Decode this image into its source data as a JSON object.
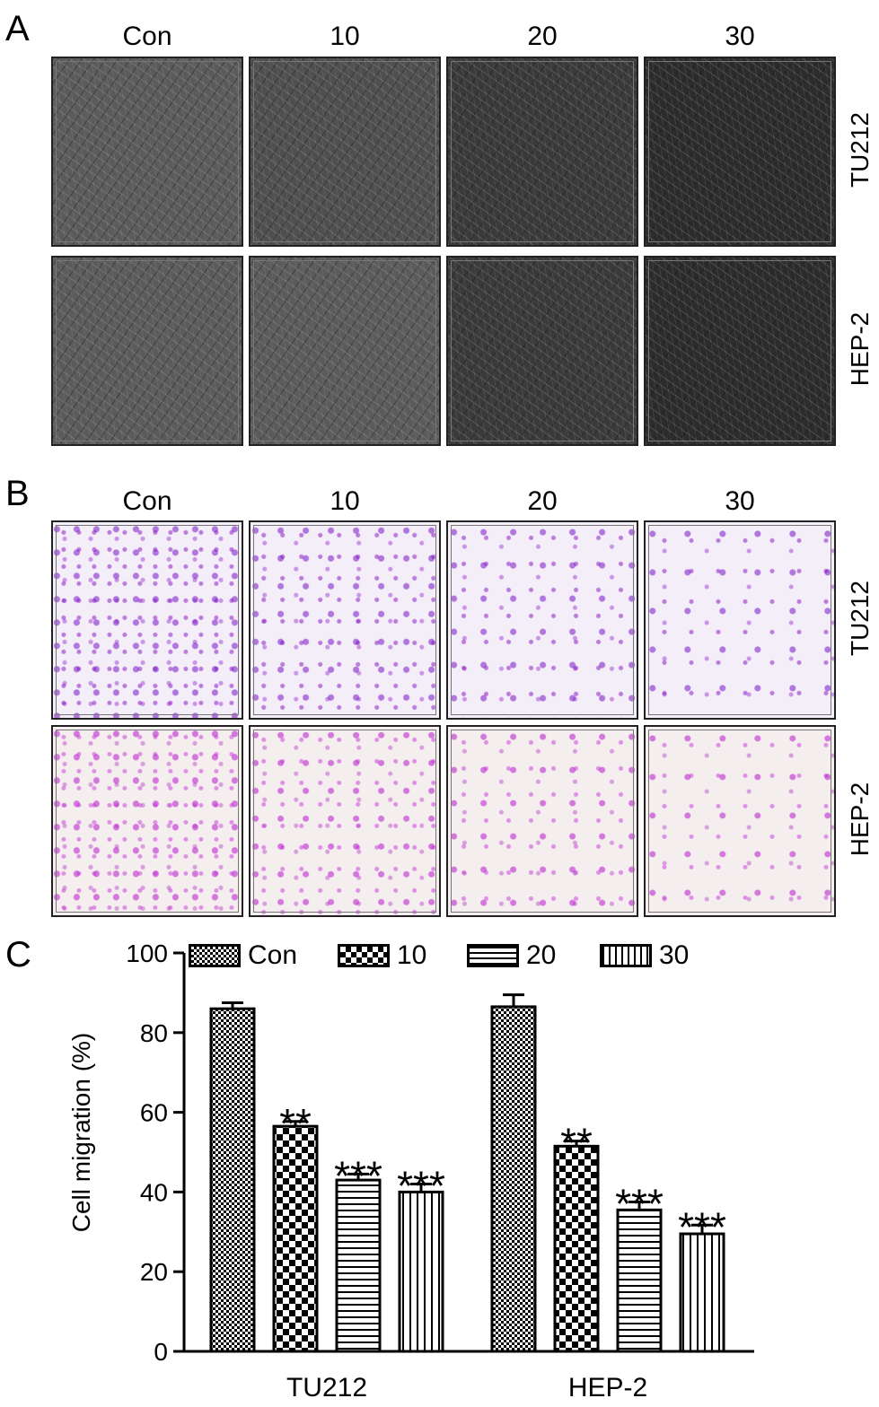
{
  "panels": {
    "a": {
      "letter": "A",
      "columns": [
        "Con",
        "10",
        "20",
        "30"
      ],
      "rows": [
        "TU212",
        "HEP-2"
      ]
    },
    "b": {
      "letter": "B",
      "columns": [
        "Con",
        "10",
        "20",
        "30"
      ],
      "rows": [
        "TU212",
        "HEP-2"
      ]
    },
    "c": {
      "letter": "C"
    }
  },
  "chart_data": {
    "type": "bar",
    "title": "",
    "xlabel": "",
    "ylabel": "Cell migration (%)",
    "ylim": [
      0,
      100
    ],
    "yticks": [
      0,
      20,
      40,
      60,
      80,
      100
    ],
    "grid": false,
    "legend_position": "top",
    "categories": [
      "TU212",
      "HEP-2"
    ],
    "series": [
      {
        "name": "Con",
        "pattern": "checker-fine",
        "values": [
          86,
          86.5
        ],
        "errors": [
          1.5,
          3
        ],
        "significance": [
          "",
          ""
        ]
      },
      {
        "name": "10",
        "pattern": "checker-coarse",
        "values": [
          56.5,
          51.5
        ],
        "errors": [
          1.2,
          1.3
        ],
        "significance": [
          "**",
          "**"
        ]
      },
      {
        "name": "20",
        "pattern": "horizontal-lines",
        "values": [
          43,
          35.5
        ],
        "errors": [
          1.5,
          2
        ],
        "significance": [
          "***",
          "***"
        ]
      },
      {
        "name": "30",
        "pattern": "vertical-lines",
        "values": [
          40,
          29.5
        ],
        "errors": [
          2,
          2.2
        ],
        "significance": [
          "***",
          "***"
        ]
      }
    ]
  }
}
